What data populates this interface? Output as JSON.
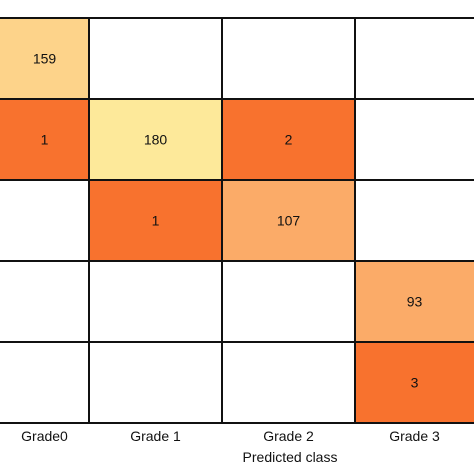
{
  "chart_data": {
    "type": "heatmap",
    "title": "",
    "xlabel": "Predicted class",
    "ylabel": "",
    "x_categories": [
      "Grade0",
      "Grade 1",
      "Grade 2",
      "Grade 3",
      ""
    ],
    "rows": [
      [
        159,
        null,
        null,
        null,
        null
      ],
      [
        1,
        180,
        2,
        null,
        null
      ],
      [
        null,
        1,
        107,
        null,
        null
      ],
      [
        null,
        null,
        null,
        93,
        null
      ],
      [
        null,
        null,
        null,
        3,
        null
      ]
    ],
    "colors": {
      "high": "#fde99a",
      "upper_mid": "#fdd38a",
      "mid": "#fbab68",
      "low": "#f8722e",
      "empty": "#ffffff",
      "grid": "#111111"
    },
    "color_scale": [
      {
        "min": 0,
        "max": 10,
        "color": "#f8722e"
      },
      {
        "min": 10,
        "max": 140,
        "color": "#fbab68"
      },
      {
        "min": 140,
        "max": 170,
        "color": "#fdd38a"
      },
      {
        "min": 170,
        "max": 1000,
        "color": "#fde99a"
      }
    ]
  }
}
